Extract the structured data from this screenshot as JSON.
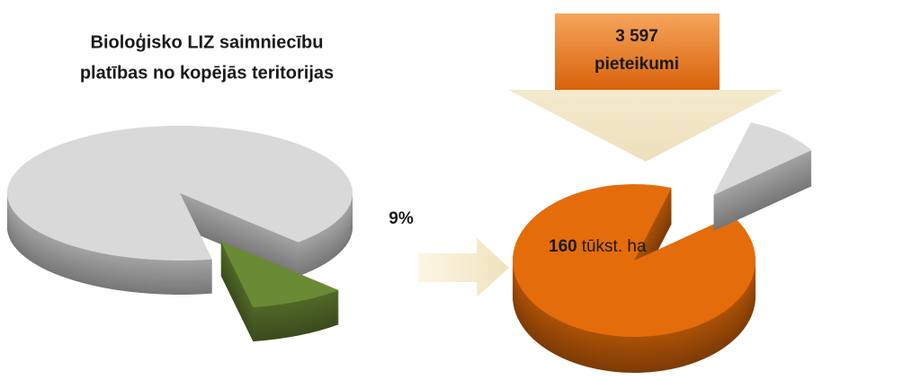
{
  "title": [
    "Bioloģisko LIZ saimniecību",
    "platības no kopējās teritorijas"
  ],
  "left_pie": {
    "values": [
      91,
      9
    ],
    "label": "9%",
    "colors": [
      "#d9d9d9",
      "#6b8a35"
    ]
  },
  "right_pie": {
    "values": [
      90,
      10
    ],
    "colors": [
      "#e46c0a",
      "#d9d9d9"
    ],
    "label_number": "160",
    "label_unit": "tūkst. ha"
  },
  "arrow_label": [
    "3 597",
    "pieteikumi"
  ]
}
